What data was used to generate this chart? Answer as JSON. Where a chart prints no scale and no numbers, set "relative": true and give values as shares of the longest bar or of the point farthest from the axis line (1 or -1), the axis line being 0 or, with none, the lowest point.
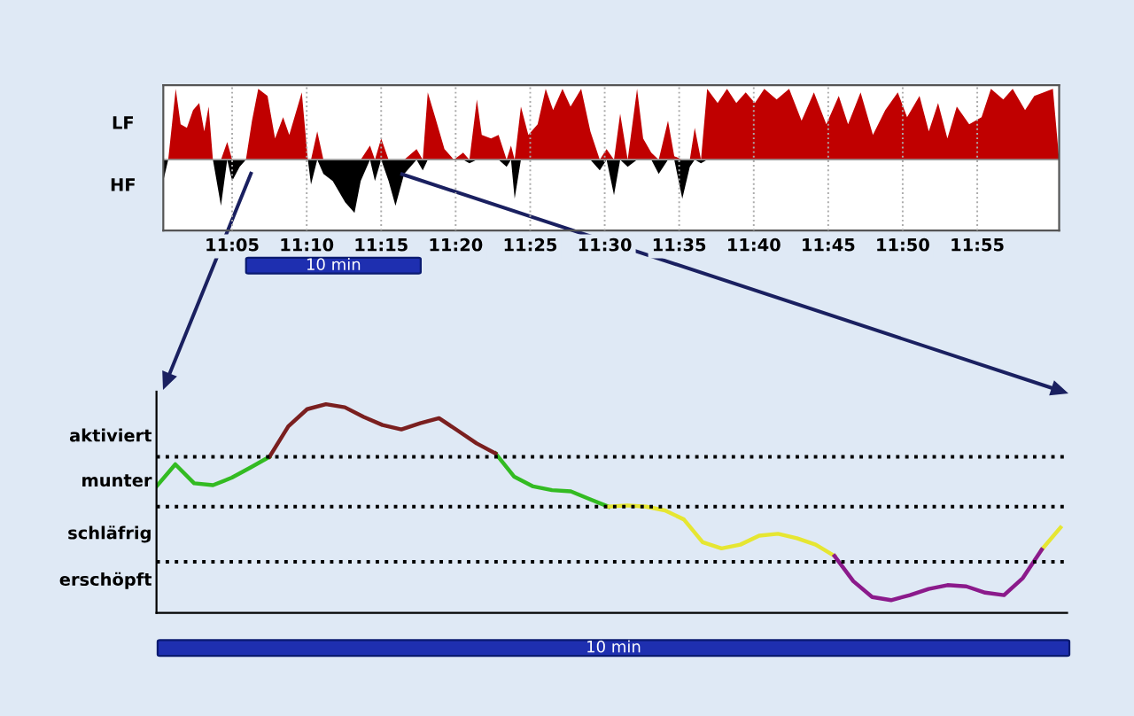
{
  "chart_data": [
    {
      "type": "area",
      "relative": true,
      "grid": "x",
      "annotations": [
        "10 min"
      ],
      "x": [
        11.0063,
        11.0118,
        11.0202,
        11.0257,
        11.0327,
        11.0396,
        11.0465,
        11.0521,
        11.057,
        11.0618,
        11.0708,
        11.0778,
        11.0833,
        11.0917,
        11.0987,
        11.1055,
        11.1125,
        11.1229,
        11.1313,
        11.1403,
        11.1472,
        11.1612,
        11.168,
        11.1715,
        11.1785,
        11.1854,
        11.1958,
        11.2097,
        11.2202,
        11.2271,
        11.2375,
        11.243,
        11.25,
        11.2583,
        11.266,
        11.2757,
        11.2896,
        11.2965,
        11.3021,
        11.3104,
        11.3208,
        11.3313,
        11.3417,
        11.3487,
        11.357,
        11.3625,
        11.3729,
        11.3813,
        11.3903,
        11.3952,
        11.3993,
        11.4063,
        11.4146,
        11.425,
        11.434,
        11.4423,
        11.4528,
        11.4618,
        11.4737,
        11.484,
        11.4945,
        11.5021,
        11.5104,
        11.5173,
        11.5257,
        11.5362,
        11.543,
        11.5521,
        11.5604,
        11.5708,
        11.5778,
        11.5868,
        11.5952,
        11.6007,
        11.6077,
        11.6146,
        11.6263,
        11.6368,
        11.6472,
        11.6577,
        11.668,
        11.6785,
        11.6923,
        11.7063,
        11.7202,
        11.734,
        11.7479,
        11.7618,
        11.7722,
        11.7862,
        11.8,
        11.8138,
        11.8278,
        11.8382,
        11.8521,
        11.8625,
        11.8729,
        11.8833,
        11.8938,
        11.9077,
        11.9215,
        11.932,
        11.9458,
        11.9563,
        11.9702,
        11.9805,
        11.991,
        12.0013,
        12.0083
      ],
      "xlim": [
        11.0063,
        12.0083
      ],
      "xticks": [
        {
          "value": 11.0833,
          "label": "11:05"
        },
        {
          "value": 11.1667,
          "label": "11:10"
        },
        {
          "value": 11.25,
          "label": "11:15"
        },
        {
          "value": 11.3333,
          "label": "11:20"
        },
        {
          "value": 11.4167,
          "label": "11:25"
        },
        {
          "value": 11.5,
          "label": "11:30"
        },
        {
          "value": 11.5833,
          "label": "11:35"
        },
        {
          "value": 11.6667,
          "label": "11:40"
        },
        {
          "value": 11.75,
          "label": "11:45"
        },
        {
          "value": 11.8333,
          "label": "11:50"
        },
        {
          "value": 11.9167,
          "label": "11:55"
        }
      ],
      "series": [
        {
          "name": "LF",
          "color": "#c00000",
          "values": [
            0,
            0,
            1.0,
            0.5,
            0.45,
            0.7,
            0.8,
            0.4,
            0.75,
            0,
            0,
            0.25,
            0,
            0,
            0,
            0.55,
            1.0,
            0.9,
            0.3,
            0.6,
            0.35,
            0.95,
            0,
            0,
            0.4,
            0,
            0,
            0,
            0,
            0,
            0.2,
            0,
            0.3,
            0,
            0,
            0,
            0.15,
            0,
            0.95,
            0.6,
            0.15,
            0,
            0.1,
            0,
            0.85,
            0.35,
            0.3,
            0.35,
            0,
            0.2,
            0,
            0.75,
            0.35,
            0.5,
            1.0,
            0.7,
            1.0,
            0.75,
            1.0,
            0.4,
            0,
            0.15,
            0,
            0.65,
            0,
            1.0,
            0.3,
            0.1,
            0,
            0.55,
            0.05,
            0,
            0,
            0.45,
            0,
            1.0,
            0.8,
            1.0,
            0.8,
            0.95,
            0.8,
            1.0,
            0.85,
            1.0,
            0.55,
            0.95,
            0.5,
            0.9,
            0.5,
            0.95,
            0.35,
            0.7,
            0.95,
            0.6,
            0.9,
            0.4,
            0.8,
            0.3,
            0.75,
            0.5,
            0.6,
            1.0,
            0.85,
            1.0,
            0.7,
            0.9,
            0.95,
            1.0,
            0
          ]
        },
        {
          "name": "HF",
          "color": "#000000",
          "values": [
            -0.3,
            0,
            0,
            0,
            0,
            0,
            0,
            0,
            0,
            0,
            -0.65,
            0,
            -0.3,
            -0.1,
            0,
            0,
            0,
            0,
            0,
            0,
            0,
            0,
            0,
            -0.35,
            0,
            -0.2,
            -0.3,
            -0.6,
            -0.75,
            -0.3,
            0,
            -0.3,
            0,
            -0.3,
            -0.65,
            -0.2,
            0,
            -0.15,
            0,
            0,
            0,
            0,
            0,
            -0.05,
            0,
            0,
            0,
            0,
            -0.1,
            0,
            -0.55,
            0,
            0,
            0,
            0,
            0,
            0,
            0,
            0,
            0,
            -0.15,
            0,
            -0.5,
            0,
            -0.1,
            0,
            0,
            0,
            -0.2,
            0,
            0,
            -0.55,
            -0.1,
            0,
            -0.05,
            0,
            0,
            0,
            0,
            0,
            0,
            0,
            0,
            0,
            0,
            0,
            0,
            0,
            0,
            0,
            0,
            0,
            0,
            0,
            0,
            0,
            0,
            0,
            0,
            0,
            0,
            0,
            0,
            0,
            0,
            0,
            0,
            0,
            0
          ]
        }
      ]
    },
    {
      "type": "line",
      "relative": true,
      "annotations": [
        "aktiviert",
        "munter",
        "schläfrig",
        "erschöpft",
        "10 min"
      ],
      "categories": [
        null,
        null,
        null,
        null,
        null,
        null,
        null,
        null,
        null,
        null,
        null,
        null,
        null,
        null,
        null,
        null,
        null,
        null,
        null,
        null,
        null,
        null,
        null,
        null,
        null,
        null,
        null,
        null,
        null,
        null,
        null,
        null,
        null,
        null,
        null,
        null,
        null,
        null,
        null,
        null,
        null,
        null,
        null,
        null,
        null,
        null,
        null,
        null,
        null
      ],
      "series": [
        {
          "color": "#33bb22",
          "values": [
            0.606,
            0.712,
            0.621,
            0.612,
            0.648,
            0.697,
            0.748,
            null,
            null,
            null,
            null,
            null,
            null,
            null,
            null,
            null,
            null,
            null,
            0.764,
            0.652,
            0.606,
            0.588,
            0.582,
            0.545,
            0.509,
            null,
            null,
            null,
            null,
            null,
            null,
            null,
            null,
            null,
            null,
            null,
            null,
            null,
            null,
            null,
            null,
            null,
            null,
            null,
            null,
            null,
            null,
            null,
            null
          ]
        },
        {
          "color": "#7a1f1f",
          "values": [
            null,
            null,
            null,
            null,
            null,
            null,
            0.748,
            0.894,
            0.976,
            1.0,
            0.985,
            0.939,
            0.9,
            0.879,
            0.909,
            0.933,
            0.873,
            0.812,
            0.764,
            null,
            null,
            null,
            null,
            null,
            null,
            null,
            null,
            null,
            null,
            null,
            null,
            null,
            null,
            null,
            null,
            null,
            null,
            null,
            null,
            null,
            null,
            null,
            null,
            null,
            null,
            null,
            null,
            null,
            null
          ]
        },
        {
          "color": "#e6e632",
          "values": [
            null,
            null,
            null,
            null,
            null,
            null,
            null,
            null,
            null,
            null,
            null,
            null,
            null,
            null,
            null,
            null,
            null,
            null,
            null,
            null,
            null,
            null,
            null,
            null,
            0.509,
            0.515,
            0.509,
            0.491,
            0.448,
            0.339,
            0.309,
            0.327,
            0.37,
            0.379,
            0.358,
            0.327,
            0.273,
            null,
            null,
            null,
            null,
            null,
            null,
            null,
            null,
            null,
            null,
            0.303,
            0.409
          ]
        },
        {
          "color": "#8b1a8b",
          "values": [
            null,
            null,
            null,
            null,
            null,
            null,
            null,
            null,
            null,
            null,
            null,
            null,
            null,
            null,
            null,
            null,
            null,
            null,
            null,
            null,
            null,
            null,
            null,
            null,
            null,
            null,
            null,
            null,
            null,
            null,
            null,
            null,
            null,
            null,
            null,
            null,
            0.273,
            0.152,
            0.076,
            0.061,
            0.085,
            0.115,
            0.133,
            0.127,
            0.097,
            0.085,
            0.167,
            0.303,
            null
          ]
        }
      ],
      "ref_lines": [
        {
          "axis": "y",
          "value": 0.748,
          "color": "#000000",
          "line_style": "dotted"
        },
        {
          "axis": "y",
          "value": 0.509,
          "color": "#000000",
          "line_style": "dotted"
        },
        {
          "axis": "y",
          "value": 0.245,
          "color": "#000000",
          "line_style": "dotted"
        }
      ]
    }
  ]
}
